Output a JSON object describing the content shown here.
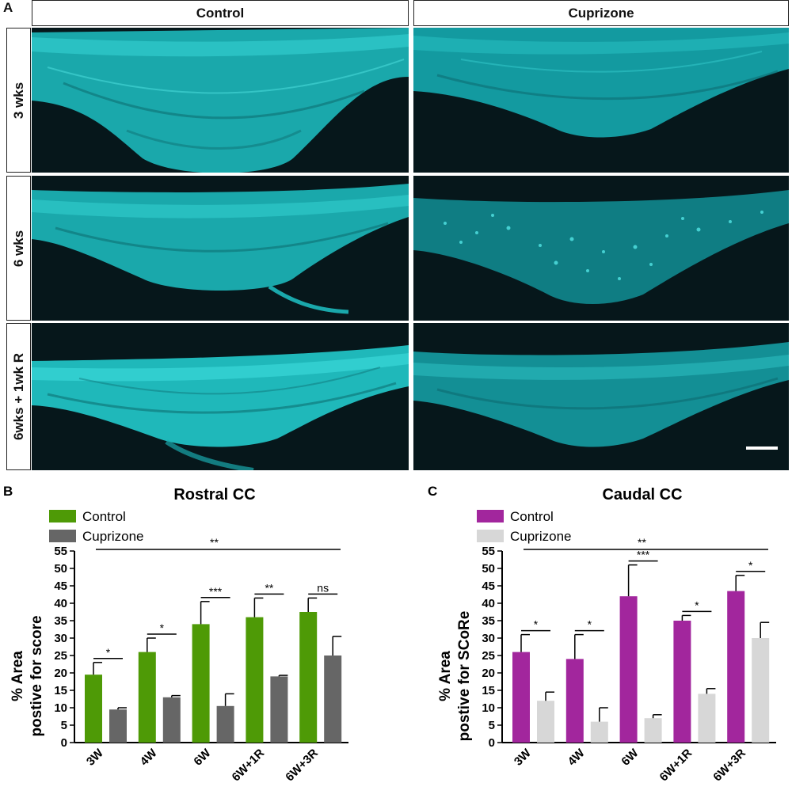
{
  "panel_a": {
    "letter": "A",
    "columns": [
      "Control",
      "Cuprizone"
    ],
    "rows": [
      "3 wks",
      "6 wks",
      "6wks + 1wk R"
    ],
    "stain_color": "#2fd0d0",
    "background_color": "#06171b"
  },
  "colors": {
    "control_green": "#4e9a06",
    "cuprizone_dark": "#666666",
    "control_magenta": "#a2269d",
    "cuprizone_light": "#d7d7d7"
  },
  "chart_data": [
    {
      "panel": "B",
      "type": "bar",
      "title": "Rostral CC",
      "ylabel": "% Area\npostive for score",
      "xlabel": "",
      "categories": [
        "3W",
        "4W",
        "6W",
        "6W+1R",
        "6W+3R"
      ],
      "series": [
        {
          "name": "Control",
          "color": "#4e9a06",
          "values": [
            19.5,
            26,
            34,
            36,
            37.5
          ],
          "errors": [
            3.5,
            4,
            6.5,
            5.5,
            4
          ]
        },
        {
          "name": "Cuprizone",
          "color": "#666666",
          "values": [
            9.5,
            13,
            10.5,
            19,
            25
          ],
          "errors": [
            0.5,
            0.5,
            3.5,
            0.3,
            5.5
          ]
        }
      ],
      "ylim": [
        0,
        55
      ],
      "yticks": [
        0,
        5,
        10,
        15,
        20,
        25,
        30,
        35,
        40,
        45,
        50,
        55
      ],
      "pair_significance": [
        "*",
        "*",
        "***",
        "**",
        "ns"
      ],
      "overall_significance": "**",
      "legend_position": "top-left"
    },
    {
      "panel": "C",
      "type": "bar",
      "title": "Caudal CC",
      "ylabel": "% Area\npostive for SCoRe",
      "xlabel": "",
      "categories": [
        "3W",
        "4W",
        "6W",
        "6W+1R",
        "6W+3R"
      ],
      "series": [
        {
          "name": "Control",
          "color": "#a2269d",
          "values": [
            26,
            24,
            42,
            35,
            43.5
          ],
          "errors": [
            5,
            7,
            9,
            1.5,
            4.5
          ]
        },
        {
          "name": "Cuprizone",
          "color": "#d7d7d7",
          "values": [
            12,
            6,
            7,
            14,
            30
          ],
          "errors": [
            2.5,
            4,
            1,
            1.5,
            4.5
          ]
        }
      ],
      "ylim": [
        0,
        55
      ],
      "yticks": [
        0,
        5,
        10,
        15,
        20,
        25,
        30,
        35,
        40,
        45,
        50,
        55
      ],
      "pair_significance": [
        "*",
        "*",
        "***",
        "*",
        "*"
      ],
      "overall_significance": "**",
      "legend_position": "top-left"
    }
  ]
}
